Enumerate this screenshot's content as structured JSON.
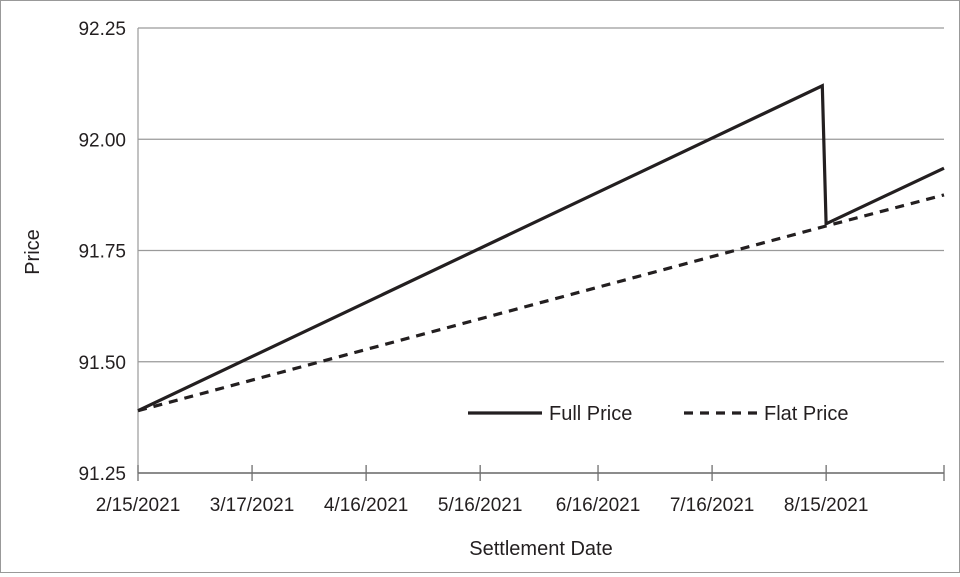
{
  "chart_data": {
    "type": "line",
    "xlabel": "Settlement Date",
    "ylabel": "Price",
    "ylim": [
      91.25,
      92.25
    ],
    "yticks": [
      "91.25",
      "91.50",
      "91.75",
      "92.00",
      "92.25"
    ],
    "xlim": [
      "2021-02-15",
      "2021-09-15"
    ],
    "xticks": [
      {
        "date": "2021-02-15",
        "label": "2/15/2021"
      },
      {
        "date": "2021-03-17",
        "label": "3/17/2021"
      },
      {
        "date": "2021-04-16",
        "label": "4/16/2021"
      },
      {
        "date": "2021-05-16",
        "label": "5/16/2021"
      },
      {
        "date": "2021-06-16",
        "label": "6/16/2021"
      },
      {
        "date": "2021-07-16",
        "label": "7/16/2021"
      },
      {
        "date": "2021-08-15",
        "label": "8/15/2021"
      }
    ],
    "grid": {
      "horizontal": true,
      "vertical": false
    },
    "legend_position": "lower-right",
    "series": [
      {
        "name": "Full Price",
        "style": "solid",
        "color": "#231f20",
        "points": [
          {
            "x": "2021-02-15",
            "y": 91.39
          },
          {
            "x": "2021-08-14",
            "y": 92.12
          },
          {
            "x": "2021-08-15",
            "y": 91.81
          },
          {
            "x": "2021-09-15",
            "y": 91.935
          }
        ]
      },
      {
        "name": "Flat Price",
        "style": "dashed",
        "color": "#231f20",
        "points": [
          {
            "x": "2021-02-15",
            "y": 91.39
          },
          {
            "x": "2021-08-15",
            "y": 91.805
          },
          {
            "x": "2021-09-15",
            "y": 91.875
          }
        ]
      }
    ]
  }
}
